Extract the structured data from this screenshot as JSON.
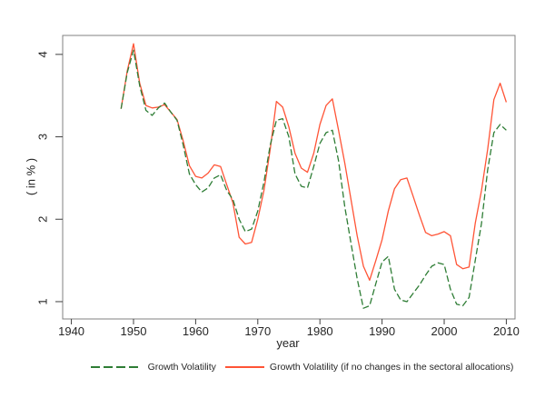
{
  "chart_data": {
    "type": "line",
    "title": "",
    "xlabel": "year",
    "ylabel": "( in % )",
    "xlim": [
      1938.6,
      2011.4
    ],
    "ylim": [
      0.79,
      4.23
    ],
    "x_ticks": [
      1940,
      1950,
      1960,
      1970,
      1980,
      1990,
      2000,
      2010
    ],
    "y_ticks": [
      1,
      2,
      3,
      4
    ],
    "grid": false,
    "legend_position": "bottom",
    "frame_color": "#808080",
    "tick_color": "#404040",
    "years": [
      1948,
      1949,
      1950,
      1951,
      1952,
      1953,
      1954,
      1955,
      1956,
      1957,
      1958,
      1959,
      1960,
      1961,
      1962,
      1963,
      1964,
      1965,
      1966,
      1967,
      1968,
      1969,
      1970,
      1971,
      1972,
      1973,
      1974,
      1975,
      1976,
      1977,
      1978,
      1979,
      1980,
      1981,
      1982,
      1983,
      1984,
      1985,
      1986,
      1987,
      1988,
      1989,
      1990,
      1991,
      1992,
      1993,
      1994,
      1995,
      1996,
      1997,
      1998,
      1999,
      2000,
      2001,
      2002,
      2003,
      2004,
      2005,
      2006,
      2007,
      2008,
      2009,
      2010
    ],
    "series": [
      {
        "name": "Growth Volatility",
        "color": "#2e7d35",
        "line_style": "dashed",
        "values": [
          3.34,
          3.78,
          4.05,
          3.62,
          3.32,
          3.26,
          3.35,
          3.41,
          3.3,
          3.2,
          2.9,
          2.55,
          2.42,
          2.33,
          2.38,
          2.5,
          2.54,
          2.35,
          2.24,
          2.0,
          1.85,
          1.88,
          2.1,
          2.45,
          2.9,
          3.2,
          3.22,
          3.0,
          2.55,
          2.4,
          2.38,
          2.64,
          2.92,
          3.05,
          3.08,
          2.71,
          2.15,
          1.71,
          1.28,
          0.92,
          0.95,
          1.22,
          1.48,
          1.55,
          1.15,
          1.02,
          1.0,
          1.1,
          1.2,
          1.32,
          1.43,
          1.47,
          1.45,
          1.15,
          0.97,
          0.95,
          1.05,
          1.5,
          1.95,
          2.6,
          3.05,
          3.15,
          3.08
        ]
      },
      {
        "name": "Growth Volatility (if no changes in the sectoral allocations)",
        "color": "#ff5436",
        "line_style": "solid",
        "values": [
          3.34,
          3.8,
          4.13,
          3.65,
          3.38,
          3.35,
          3.36,
          3.39,
          3.3,
          3.21,
          2.95,
          2.65,
          2.52,
          2.5,
          2.56,
          2.66,
          2.64,
          2.42,
          2.2,
          1.78,
          1.7,
          1.72,
          2.0,
          2.35,
          2.85,
          3.43,
          3.36,
          3.12,
          2.8,
          2.62,
          2.57,
          2.8,
          3.15,
          3.38,
          3.46,
          3.08,
          2.68,
          2.24,
          1.8,
          1.43,
          1.26,
          1.5,
          1.75,
          2.1,
          2.37,
          2.48,
          2.5,
          2.28,
          2.05,
          1.84,
          1.8,
          1.82,
          1.85,
          1.8,
          1.45,
          1.4,
          1.42,
          1.95,
          2.35,
          2.85,
          3.45,
          3.65,
          3.42
        ]
      }
    ]
  }
}
